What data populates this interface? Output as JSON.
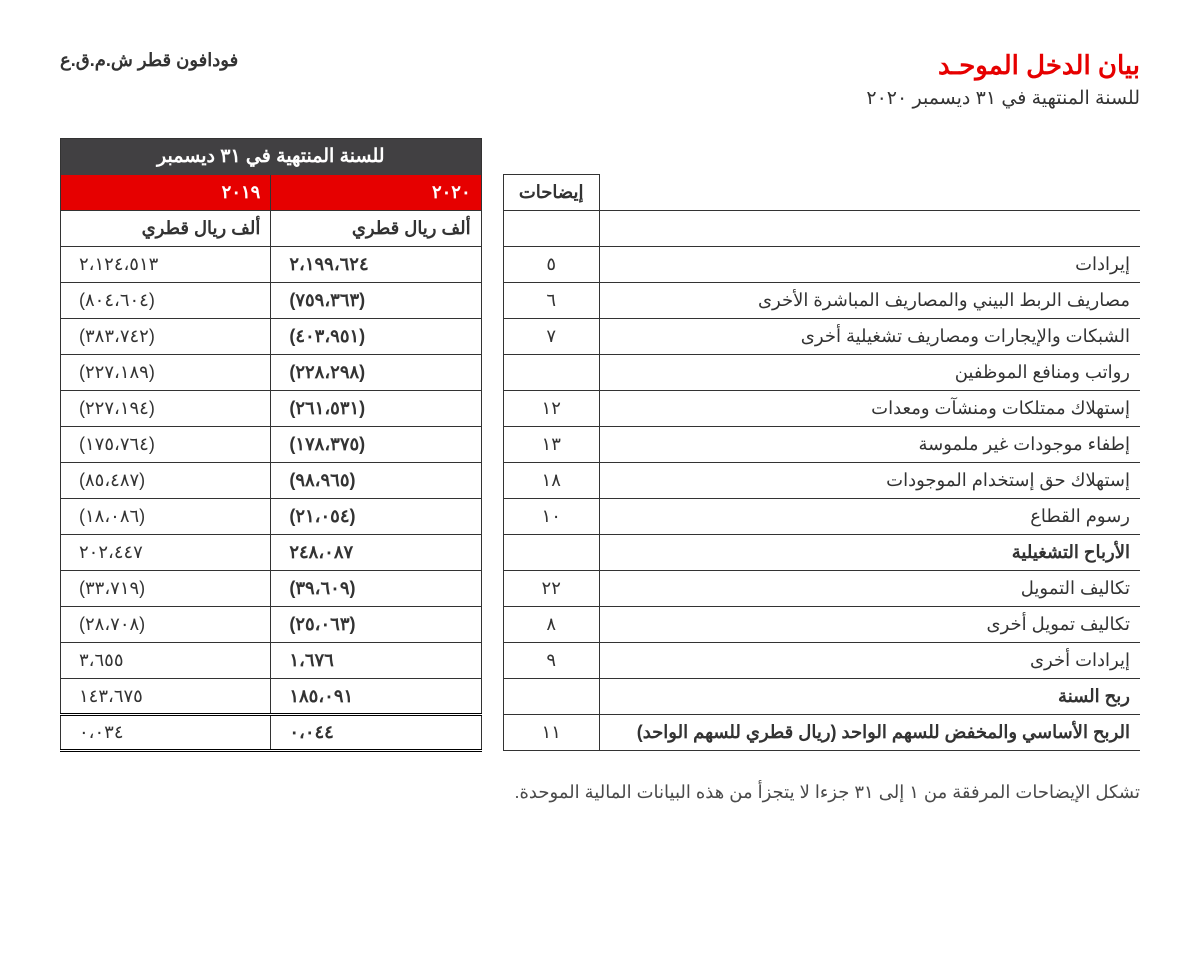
{
  "header": {
    "title": "بيان الدخل الموحـد",
    "company": "فودافون قطر ش.م.ق.ع",
    "subtitle": "للسنة المنتهية في ٣١ ديسمبر ٢٠٢٠"
  },
  "table": {
    "period_header": "للسنة المنتهية في ٣١ ديسمبر",
    "notes_label": "إيضاحات",
    "year_2020": "٢٠٢٠",
    "year_2019": "٢٠١٩",
    "unit_2020": "ألف ريال قطري",
    "unit_2019": "ألف ريال قطري",
    "rows": [
      {
        "desc": "إيرادات",
        "note": "٥",
        "v2020": "٢،١٩٩،٦٢٤",
        "v2019": "٢،١٢٤،٥١٣",
        "bold": false
      },
      {
        "desc": "مصاريف الربط البيني والمصاريف المباشرة الأخرى",
        "note": "٦",
        "v2020": "(٧٥٩،٣٦٣)",
        "v2019": "(٨٠٤،٦٠٤)",
        "bold": false
      },
      {
        "desc": "الشبكات والإيجارات ومصاريف تشغيلية أخرى",
        "note": "٧",
        "v2020": "(٤٠٣،٩٥١)",
        "v2019": "(٣٨٣،٧٤٢)",
        "bold": false
      },
      {
        "desc": "رواتب ومنافع الموظفين",
        "note": "",
        "v2020": "(٢٢٨،٢٩٨)",
        "v2019": "(٢٢٧،١٨٩)",
        "bold": false
      },
      {
        "desc": "إستهلاك ممتلكات ومنشآت ومعدات",
        "note": "١٢",
        "v2020": "(٢٦١،٥٣١)",
        "v2019": "(٢٢٧،١٩٤)",
        "bold": false
      },
      {
        "desc": "إطفاء موجودات غير ملموسة",
        "note": "١٣",
        "v2020": "(١٧٨،٣٧٥)",
        "v2019": "(١٧٥،٧٦٤)",
        "bold": false
      },
      {
        "desc": "إستهلاك حق إستخدام الموجودات",
        "note": "١٨",
        "v2020": "(٩٨،٩٦٥)",
        "v2019": "(٨٥،٤٨٧)",
        "bold": false
      },
      {
        "desc": "رسوم القطاع",
        "note": "١٠",
        "v2020": "(٢١،٠٥٤)",
        "v2019": "(١٨،٠٨٦)",
        "bold": false
      },
      {
        "desc": "الأرباح التشغيلية",
        "note": "",
        "v2020": "٢٤٨،٠٨٧",
        "v2019": "٢٠٢،٤٤٧",
        "bold": true,
        "subtotal": true
      },
      {
        "desc": "تكاليف التمويل",
        "note": "٢٢",
        "v2020": "(٣٩،٦٠٩)",
        "v2019": "(٣٣،٧١٩)",
        "bold": false
      },
      {
        "desc": "تكاليف تمويل أخرى",
        "note": "٨",
        "v2020": "(٢٥،٠٦٣)",
        "v2019": "(٢٨،٧٠٨)",
        "bold": false
      },
      {
        "desc": "إيرادات أخرى",
        "note": "٩",
        "v2020": "١،٦٧٦",
        "v2019": "٣،٦٥٥",
        "bold": false
      },
      {
        "desc": "ربح السنة",
        "note": "",
        "v2020": "١٨٥،٠٩١",
        "v2019": "١٤٣،٦٧٥",
        "bold": true,
        "total": true
      },
      {
        "desc": "الربح الأساسي والمخفض  للسهم الواحد (ريال قطري للسهم الواحد)",
        "note": "١١",
        "v2020": "٠،٠٤٤",
        "v2019": "٠،٠٣٤",
        "bold": true,
        "final": true
      }
    ]
  },
  "footer": "تشكل الإيضاحات المرفقة من ١ إلى ٣١ جزءا لا يتجزأ من هذه البيانات المالية الموحدة."
}
